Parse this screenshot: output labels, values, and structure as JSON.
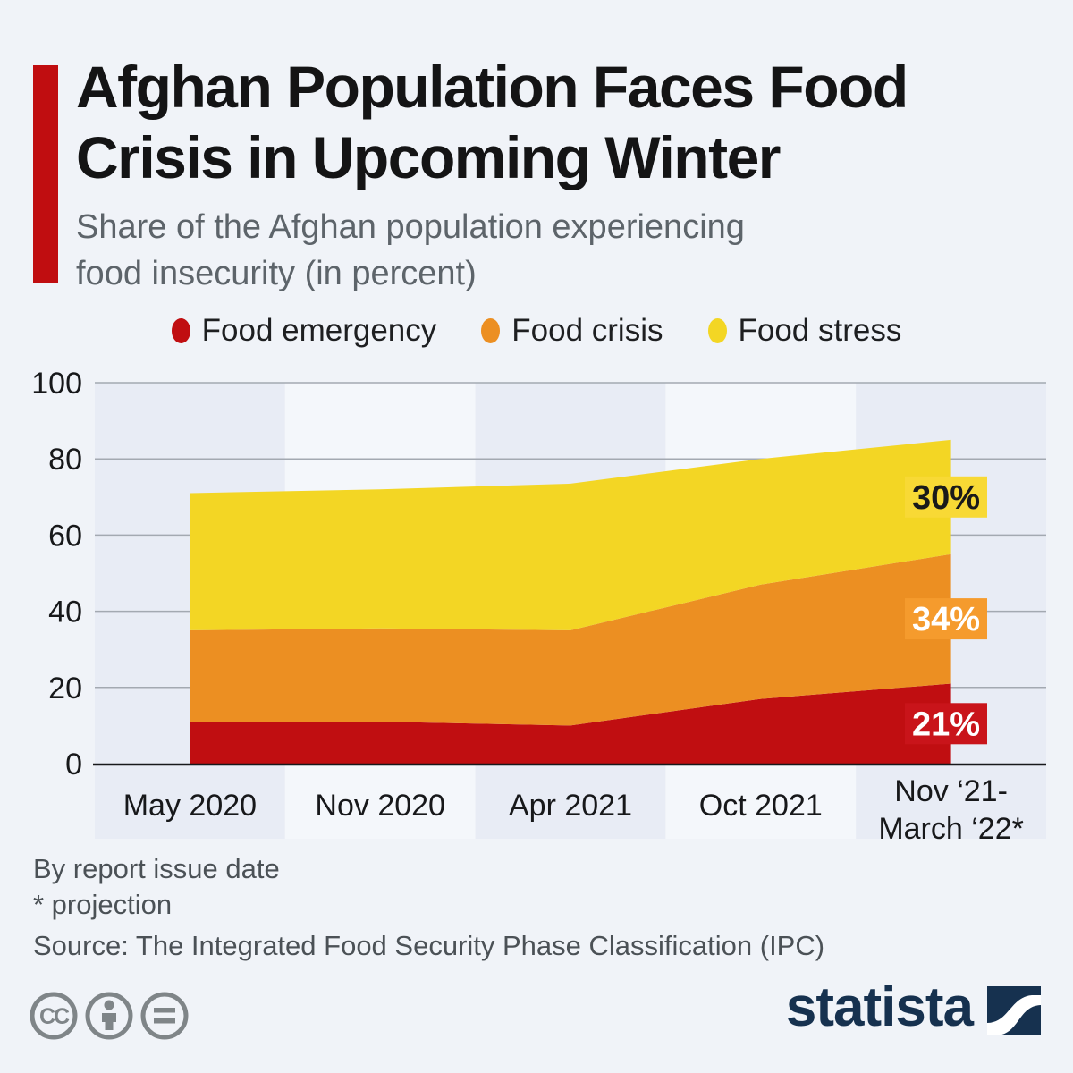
{
  "header": {
    "title_line1": "Afghan Population Faces Food",
    "title_line2": "Crisis in Upcoming Winter",
    "subtitle_line1": "Share of the Afghan population experiencing",
    "subtitle_line2": "food insecurity (in percent)",
    "accent_color": "#c00d10"
  },
  "legend": {
    "items": [
      {
        "label": "Food emergency",
        "color": "#c00e11"
      },
      {
        "label": "Food crisis",
        "color": "#ec8f22"
      },
      {
        "label": "Food stress",
        "color": "#f3d624"
      }
    ]
  },
  "chart_data": {
    "type": "area",
    "stacked": true,
    "title": "Share of the Afghan population experiencing food insecurity (in percent)",
    "categories": [
      "May 2020",
      "Nov 2020",
      "Apr 2021",
      "Oct 2021",
      "Nov ‘21-\nMarch ‘22*"
    ],
    "series": [
      {
        "name": "Food emergency",
        "color": "#c00e11",
        "label_color": "#c9141a",
        "values": [
          11,
          11,
          10,
          17,
          21
        ],
        "cumulative_top": [
          35,
          35.5,
          35,
          47,
          55
        ],
        "end_label": "21%",
        "end_label_text_color": "#ffffff"
      },
      {
        "name": "Food crisis",
        "color": "#ec8f22",
        "label_color": "#f59b2d",
        "values": [
          24,
          24.5,
          25,
          30,
          34
        ],
        "end_label": "34%",
        "end_label_text_color": "#ffffff"
      },
      {
        "name": "Food stress",
        "color": "#f3d624",
        "label_color": "#f8d935",
        "values": [
          36,
          36.5,
          38.5,
          33,
          30
        ],
        "end_label": "30%",
        "end_label_text_color": "#1a1a1a"
      }
    ],
    "ylim": [
      0,
      100
    ],
    "yticks": [
      0,
      20,
      40,
      60,
      80,
      100
    ],
    "grid": true,
    "grid_color": "#a3a9b1",
    "axis_color": "#17181b",
    "band_colors": [
      "#e8ecf5",
      "#f4f7fb"
    ],
    "legend_position": "top"
  },
  "footer": {
    "note_line1": "By report issue date",
    "note_line2": "* projection",
    "source": "Source: The Integrated Food Security Phase Classification (IPC)"
  },
  "branding": {
    "logo_text": "statista",
    "logo_color": "#16314f",
    "cc_icons": [
      "cc",
      "person-by",
      "equals-nd"
    ]
  }
}
